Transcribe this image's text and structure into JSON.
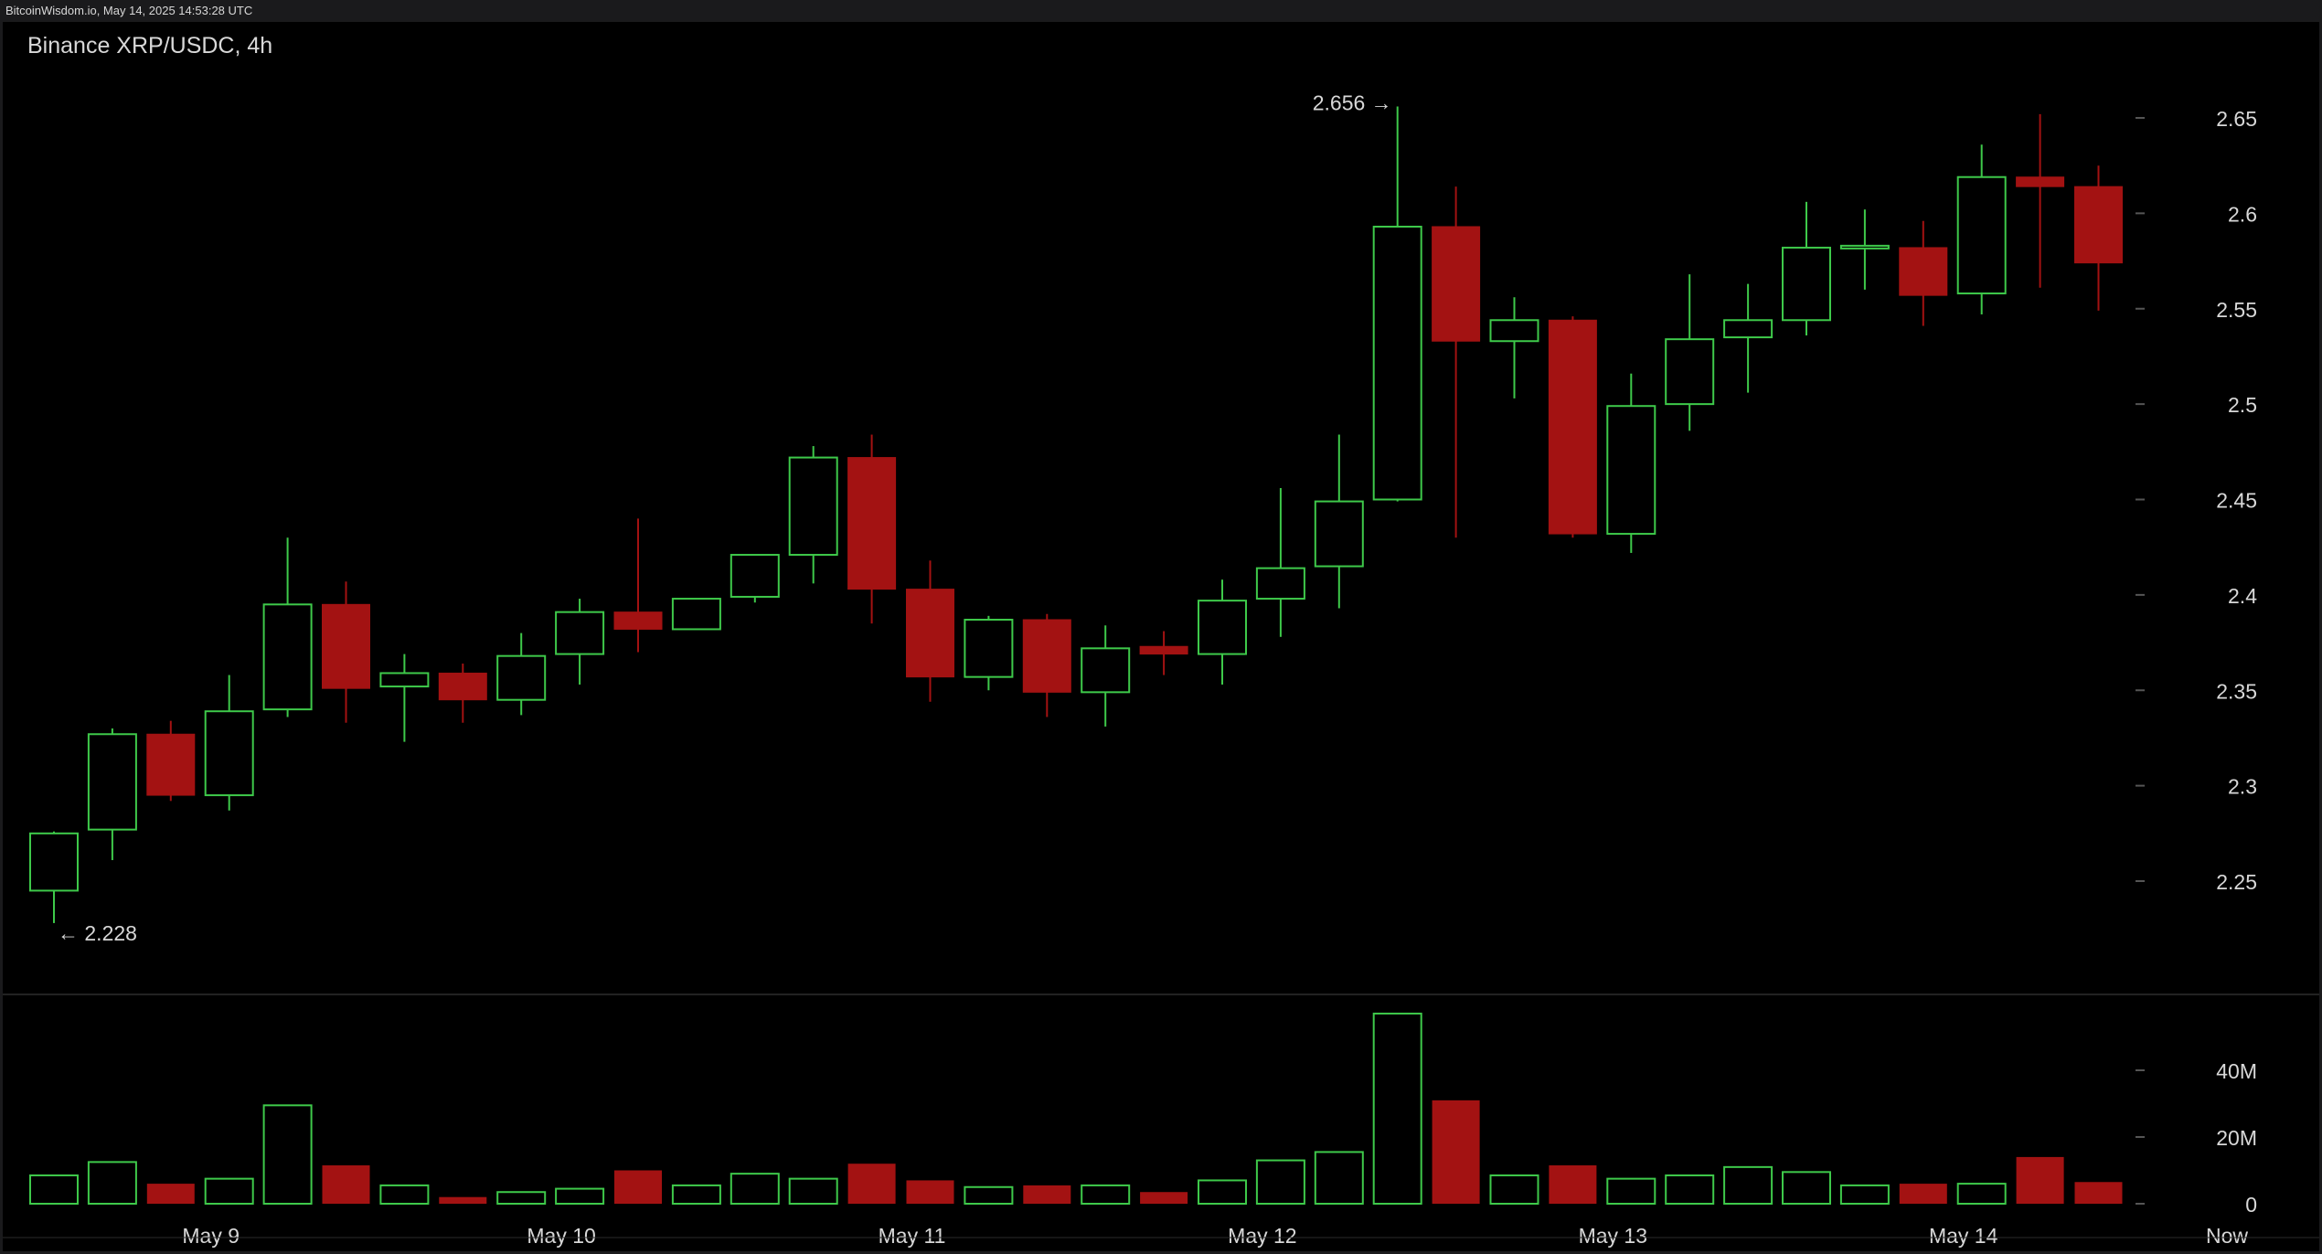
{
  "header": {
    "timestamp": "BitcoinWisdom.io, May 14, 2025 14:53:28 UTC"
  },
  "chart_data": {
    "type": "candlestick",
    "title": "Binance XRP/USDC, 4h",
    "x_tick_labels": [
      "May 9",
      "May 10",
      "May 11",
      "May 12",
      "May 13",
      "May 14",
      "Now"
    ],
    "price_ticks": [
      "2.25",
      "2.3",
      "2.35",
      "2.4",
      "2.45",
      "2.5",
      "2.55",
      "2.6",
      "2.65"
    ],
    "volume_ticks": [
      "0",
      "20M",
      "40M"
    ],
    "ylim": [
      2.18,
      2.69
    ],
    "volume_ylim": [
      0,
      62
    ],
    "volume_unit": "M",
    "grid": false,
    "colors": {
      "up": "#3ec94a",
      "down": "#a31212",
      "background": "#000000",
      "text": "#d8d8d8"
    },
    "annotations": {
      "high_label": "2.656 →",
      "low_label": "← 2.228"
    },
    "candles": [
      {
        "o": 2.245,
        "h": 2.276,
        "l": 2.228,
        "c": 2.275,
        "v": 8.5
      },
      {
        "o": 2.277,
        "h": 2.33,
        "l": 2.261,
        "c": 2.327,
        "v": 12.5
      },
      {
        "o": 2.327,
        "h": 2.334,
        "l": 2.292,
        "c": 2.295,
        "v": 6.0
      },
      {
        "o": 2.295,
        "h": 2.358,
        "l": 2.287,
        "c": 2.339,
        "v": 7.5
      },
      {
        "o": 2.34,
        "h": 2.43,
        "l": 2.336,
        "c": 2.395,
        "v": 29.5
      },
      {
        "o": 2.395,
        "h": 2.407,
        "l": 2.333,
        "c": 2.351,
        "v": 11.5
      },
      {
        "o": 2.352,
        "h": 2.369,
        "l": 2.323,
        "c": 2.359,
        "v": 5.5
      },
      {
        "o": 2.359,
        "h": 2.364,
        "l": 2.333,
        "c": 2.345,
        "v": 2.0
      },
      {
        "o": 2.345,
        "h": 2.38,
        "l": 2.337,
        "c": 2.368,
        "v": 3.5
      },
      {
        "o": 2.369,
        "h": 2.398,
        "l": 2.353,
        "c": 2.391,
        "v": 4.5
      },
      {
        "o": 2.391,
        "h": 2.44,
        "l": 2.37,
        "c": 2.382,
        "v": 10.0
      },
      {
        "o": 2.382,
        "h": 2.398,
        "l": 2.382,
        "c": 2.398,
        "v": 5.5
      },
      {
        "o": 2.399,
        "h": 2.421,
        "l": 2.396,
        "c": 2.421,
        "v": 9.0
      },
      {
        "o": 2.421,
        "h": 2.478,
        "l": 2.406,
        "c": 2.472,
        "v": 7.5
      },
      {
        "o": 2.472,
        "h": 2.484,
        "l": 2.385,
        "c": 2.403,
        "v": 12.0
      },
      {
        "o": 2.403,
        "h": 2.418,
        "l": 2.344,
        "c": 2.357,
        "v": 7.0
      },
      {
        "o": 2.357,
        "h": 2.389,
        "l": 2.35,
        "c": 2.387,
        "v": 5.0
      },
      {
        "o": 2.387,
        "h": 2.39,
        "l": 2.336,
        "c": 2.349,
        "v": 5.5
      },
      {
        "o": 2.349,
        "h": 2.384,
        "l": 2.331,
        "c": 2.372,
        "v": 5.5
      },
      {
        "o": 2.373,
        "h": 2.381,
        "l": 2.358,
        "c": 2.369,
        "v": 3.5
      },
      {
        "o": 2.369,
        "h": 2.408,
        "l": 2.353,
        "c": 2.397,
        "v": 7.0
      },
      {
        "o": 2.398,
        "h": 2.456,
        "l": 2.378,
        "c": 2.414,
        "v": 13.0
      },
      {
        "o": 2.415,
        "h": 2.484,
        "l": 2.393,
        "c": 2.449,
        "v": 15.5
      },
      {
        "o": 2.45,
        "h": 2.656,
        "l": 2.449,
        "c": 2.593,
        "v": 57.0
      },
      {
        "o": 2.593,
        "h": 2.614,
        "l": 2.43,
        "c": 2.533,
        "v": 31.0
      },
      {
        "o": 2.533,
        "h": 2.556,
        "l": 2.503,
        "c": 2.544,
        "v": 8.5
      },
      {
        "o": 2.544,
        "h": 2.546,
        "l": 2.43,
        "c": 2.432,
        "v": 11.5
      },
      {
        "o": 2.432,
        "h": 2.516,
        "l": 2.422,
        "c": 2.499,
        "v": 7.5
      },
      {
        "o": 2.5,
        "h": 2.568,
        "l": 2.486,
        "c": 2.534,
        "v": 8.5
      },
      {
        "o": 2.535,
        "h": 2.563,
        "l": 2.506,
        "c": 2.544,
        "v": 11.0
      },
      {
        "o": 2.544,
        "h": 2.606,
        "l": 2.536,
        "c": 2.582,
        "v": 9.5
      },
      {
        "o": 2.582,
        "h": 2.602,
        "l": 2.56,
        "c": 2.583,
        "v": 5.5
      },
      {
        "o": 2.582,
        "h": 2.596,
        "l": 2.541,
        "c": 2.557,
        "v": 6.0
      },
      {
        "o": 2.558,
        "h": 2.636,
        "l": 2.547,
        "c": 2.619,
        "v": 6.0
      },
      {
        "o": 2.619,
        "h": 2.652,
        "l": 2.561,
        "c": 2.614,
        "v": 14.0
      },
      {
        "o": 2.614,
        "h": 2.625,
        "l": 2.549,
        "c": 2.574,
        "v": 6.5
      }
    ]
  }
}
